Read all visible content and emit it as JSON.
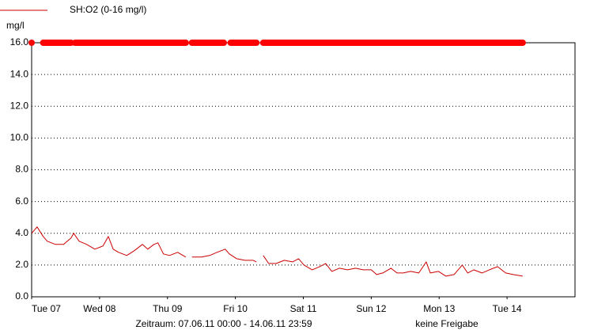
{
  "chart_data": {
    "type": "line",
    "legend_text": "SH:O2 (0-16 mg/l)",
    "y_unit": "mg/l",
    "footer_left": "Zeitraum: 07.06.11 00:00 - 14.06.11 23:59",
    "footer_right": "keine Freigabe",
    "xlim": [
      0,
      8
    ],
    "xticks": [
      {
        "value": 0,
        "label": "Tue 07"
      },
      {
        "value": 1,
        "label": "Wed 08"
      },
      {
        "value": 2,
        "label": "Thu 09"
      },
      {
        "value": 3,
        "label": "Fri 10"
      },
      {
        "value": 4,
        "label": "Sat 11"
      },
      {
        "value": 5,
        "label": "Sun 12"
      },
      {
        "value": 6,
        "label": "Mon 13"
      },
      {
        "value": 7,
        "label": "Tue 14"
      }
    ],
    "ylim": [
      0,
      16
    ],
    "yticks": [
      {
        "value": 0,
        "label": "0.0"
      },
      {
        "value": 2,
        "label": "2.0"
      },
      {
        "value": 4,
        "label": "4.0"
      },
      {
        "value": 6,
        "label": "6.0"
      },
      {
        "value": 8,
        "label": "8.0"
      },
      {
        "value": 10,
        "label": "10.0"
      },
      {
        "value": 12,
        "label": "12.0"
      },
      {
        "value": 14,
        "label": "14.0"
      },
      {
        "value": 16,
        "label": "16.0"
      }
    ],
    "grid": true,
    "series": [
      {
        "name": "SH:O2 (0-16 mg/l)",
        "color": "#cc0000",
        "width": 1,
        "x": [
          0,
          0.08,
          0.17,
          0.23,
          0.35,
          0.47,
          0.58,
          0.62,
          0.7,
          0.81,
          0.93,
          1.05,
          1.13,
          1.2,
          1.28,
          1.4,
          1.51,
          1.63,
          1.71,
          1.8,
          1.86,
          1.94,
          2.03,
          2.15,
          2.27,
          2.3,
          2.36,
          2.5,
          2.62,
          2.73,
          2.85,
          2.91,
          3.02,
          3.14,
          3.26,
          3.31,
          3.35,
          3.41,
          3.49,
          3.6,
          3.72,
          3.84,
          3.93,
          4.01,
          4.13,
          4.24,
          4.33,
          4.42,
          4.53,
          4.65,
          4.77,
          4.88,
          5.0,
          5.08,
          5.17,
          5.29,
          5.38,
          5.47,
          5.58,
          5.7,
          5.81,
          5.87,
          5.99,
          6.1,
          6.22,
          6.34,
          6.42,
          6.51,
          6.63,
          6.74,
          6.86,
          6.98,
          7.09,
          7.23
        ],
        "values": [
          4.0,
          4.4,
          3.8,
          3.5,
          3.3,
          3.3,
          3.7,
          4.0,
          3.5,
          3.3,
          3.0,
          3.2,
          3.8,
          3.0,
          2.8,
          2.6,
          2.9,
          3.3,
          3.0,
          3.3,
          3.4,
          2.7,
          2.6,
          2.8,
          2.5,
          null,
          2.5,
          2.5,
          2.6,
          2.8,
          3.0,
          2.7,
          2.4,
          2.3,
          2.3,
          2.2,
          null,
          2.6,
          2.1,
          2.1,
          2.3,
          2.2,
          2.4,
          2.0,
          1.7,
          1.9,
          2.1,
          1.6,
          1.8,
          1.7,
          1.8,
          1.7,
          1.7,
          1.4,
          1.5,
          1.8,
          1.5,
          1.5,
          1.6,
          1.5,
          2.2,
          1.5,
          1.6,
          1.3,
          1.4,
          2.0,
          1.5,
          1.7,
          1.5,
          1.7,
          1.9,
          1.5,
          1.4,
          1.3
        ]
      },
      {
        "color": "#ff0000",
        "width": 8,
        "x": [
          0,
          0,
          0.1,
          0.17,
          0.58,
          0.61,
          0.64,
          2.27,
          2.31,
          2.36,
          2.83,
          2.88,
          2.93,
          3.31,
          3.36,
          3.41,
          7.23
        ],
        "values": [
          16,
          null,
          null,
          16,
          16,
          null,
          16,
          16,
          null,
          16,
          16,
          null,
          16,
          16,
          null,
          16,
          16
        ]
      }
    ]
  }
}
